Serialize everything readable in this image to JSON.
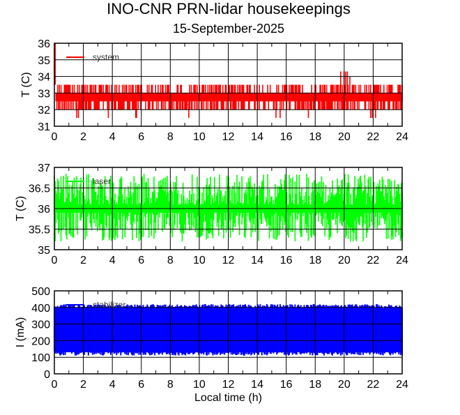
{
  "title": "INO-CNR PRN-lidar housekeepings",
  "subtitle": "15-September-2025",
  "chart_data": [
    {
      "type": "line",
      "ylabel": "T (C)",
      "xlabel": "",
      "xlim": [
        0,
        24
      ],
      "ylim": [
        31,
        36
      ],
      "xticks": [
        "0",
        "2",
        "4",
        "6",
        "8",
        "10",
        "12",
        "14",
        "16",
        "18",
        "20",
        "22",
        "24"
      ],
      "yticks": [
        "31",
        "32",
        "33",
        "34",
        "35",
        "36"
      ],
      "grid": true,
      "legend": {
        "label": "system",
        "placement": "top-left"
      },
      "color": "#ff0000",
      "series_envelope": {
        "x_step_h": 0.5,
        "min": [
          32,
          32,
          32,
          31.5,
          32,
          32,
          32,
          31.5,
          32,
          32,
          32,
          31.5,
          31.5,
          32,
          32,
          32,
          32,
          32,
          32,
          31.5,
          32,
          32,
          32,
          32,
          32,
          32,
          32,
          32,
          32,
          32,
          32,
          31.5,
          31.5,
          32,
          32,
          31.5,
          32,
          32,
          32,
          32,
          32,
          32,
          32,
          32,
          31.5,
          32,
          32,
          32,
          32
        ],
        "max": [
          36,
          33.5,
          33.5,
          33.5,
          33.5,
          33.5,
          33.5,
          33.5,
          33.5,
          33.5,
          33.5,
          33.5,
          33.5,
          33.5,
          33.5,
          33.5,
          33.5,
          33.5,
          33.5,
          33.5,
          33.5,
          33.5,
          33.5,
          33.5,
          33.5,
          33.5,
          33.5,
          33.5,
          33.5,
          33.5,
          33.5,
          33.5,
          33.5,
          33.5,
          33.5,
          33.5,
          33.5,
          33.5,
          33.5,
          33.5,
          34.3,
          34,
          33.5,
          33.5,
          33.5,
          33.5,
          33.5,
          33.5,
          33.5
        ]
      }
    },
    {
      "type": "line",
      "ylabel": "T (C)",
      "xlabel": "",
      "xlim": [
        0,
        24
      ],
      "ylim": [
        35,
        37
      ],
      "xticks": [
        "0",
        "2",
        "4",
        "6",
        "8",
        "10",
        "12",
        "14",
        "16",
        "18",
        "20",
        "22",
        "24"
      ],
      "yticks": [
        "35",
        "35.5",
        "36",
        "36.5",
        "37"
      ],
      "grid": true,
      "legend": {
        "label": "laser",
        "placement": "top-left"
      },
      "color": "#00ff00",
      "series_envelope": {
        "x_step_h": 24,
        "min": [
          35.2,
          35.2
        ],
        "max": [
          36.85,
          36.85
        ]
      }
    },
    {
      "type": "line",
      "ylabel": "I (mA)",
      "xlabel": "Local time (h)",
      "xlim": [
        0,
        24
      ],
      "ylim": [
        0,
        500
      ],
      "xticks": [
        "0",
        "2",
        "4",
        "6",
        "8",
        "10",
        "12",
        "14",
        "16",
        "18",
        "20",
        "22",
        "24"
      ],
      "yticks": [
        "0",
        "100",
        "200",
        "300",
        "400",
        "500"
      ],
      "grid": true,
      "legend": {
        "label": "stabilizer",
        "placement": "top-left"
      },
      "color": "#0000ff",
      "series_envelope": {
        "x_step_h": 24,
        "min": [
          110,
          110
        ],
        "max": [
          420,
          420
        ]
      }
    }
  ]
}
